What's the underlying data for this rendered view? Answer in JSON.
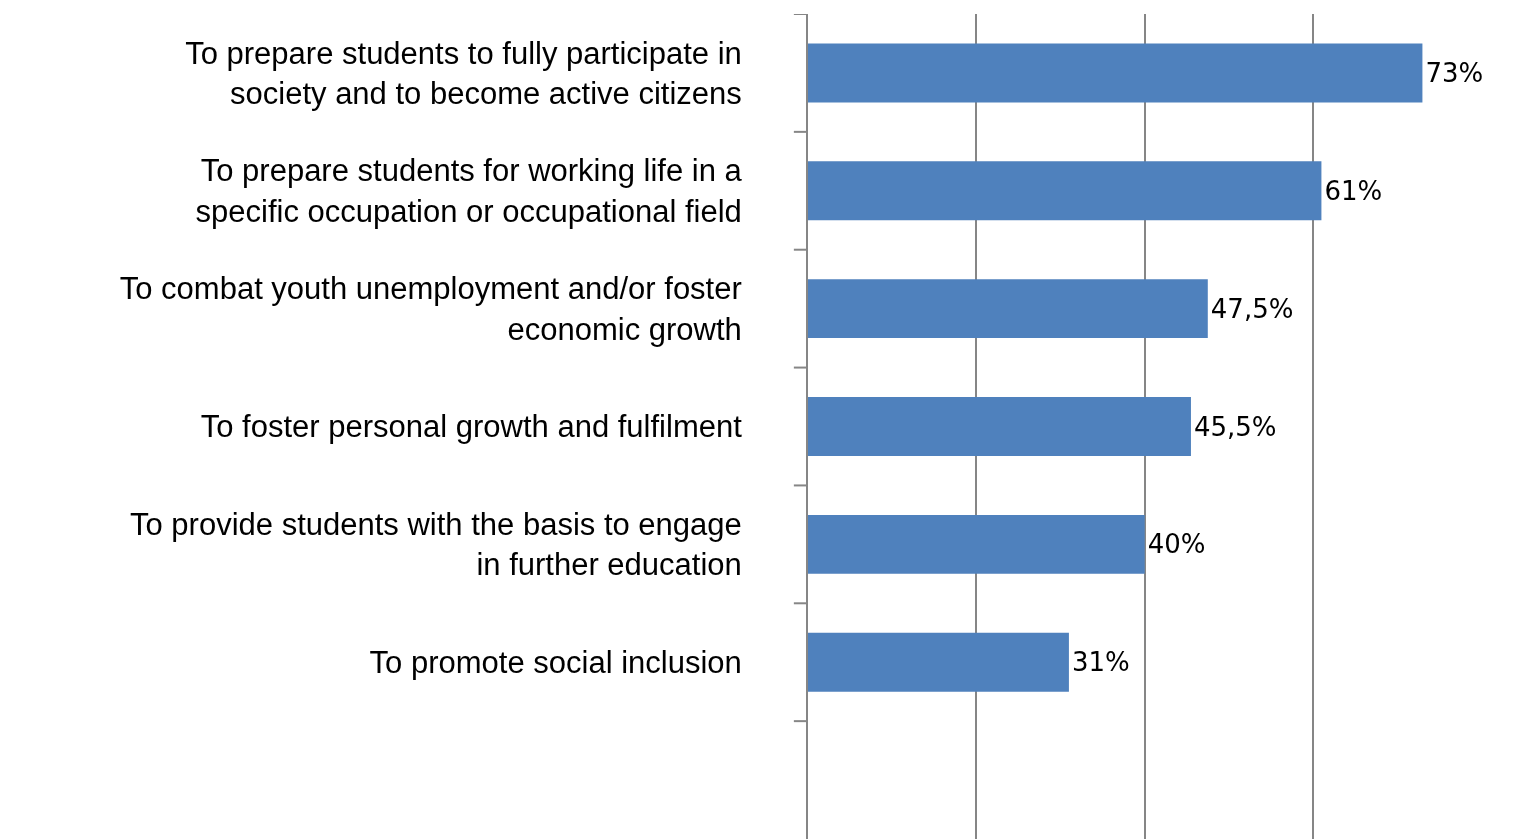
{
  "chart_data": {
    "type": "bar",
    "orientation": "horizontal",
    "categories": [
      "To prepare students to fully participate in society and to become active citizens",
      "To prepare students for working life in a specific occupation or occupational field",
      "To combat youth unemployment and/or foster economic growth",
      "To foster personal growth and fulfilment",
      "To provide students with the basis to engage in further education",
      "To promote social inclusion"
    ],
    "values": [
      73,
      61,
      47.5,
      45.5,
      40,
      31
    ],
    "value_labels": [
      "73%",
      "61%",
      "47,5%",
      "45,5%",
      "40%",
      "31%"
    ],
    "color": "#4f81bd",
    "xlim": [
      0,
      84
    ],
    "xticks": [
      {
        "value": 20,
        "label": null
      },
      {
        "value": 40,
        "label": null
      },
      {
        "value": 60,
        "label": null
      }
    ],
    "grid": "x",
    "tick_labels": "y"
  }
}
